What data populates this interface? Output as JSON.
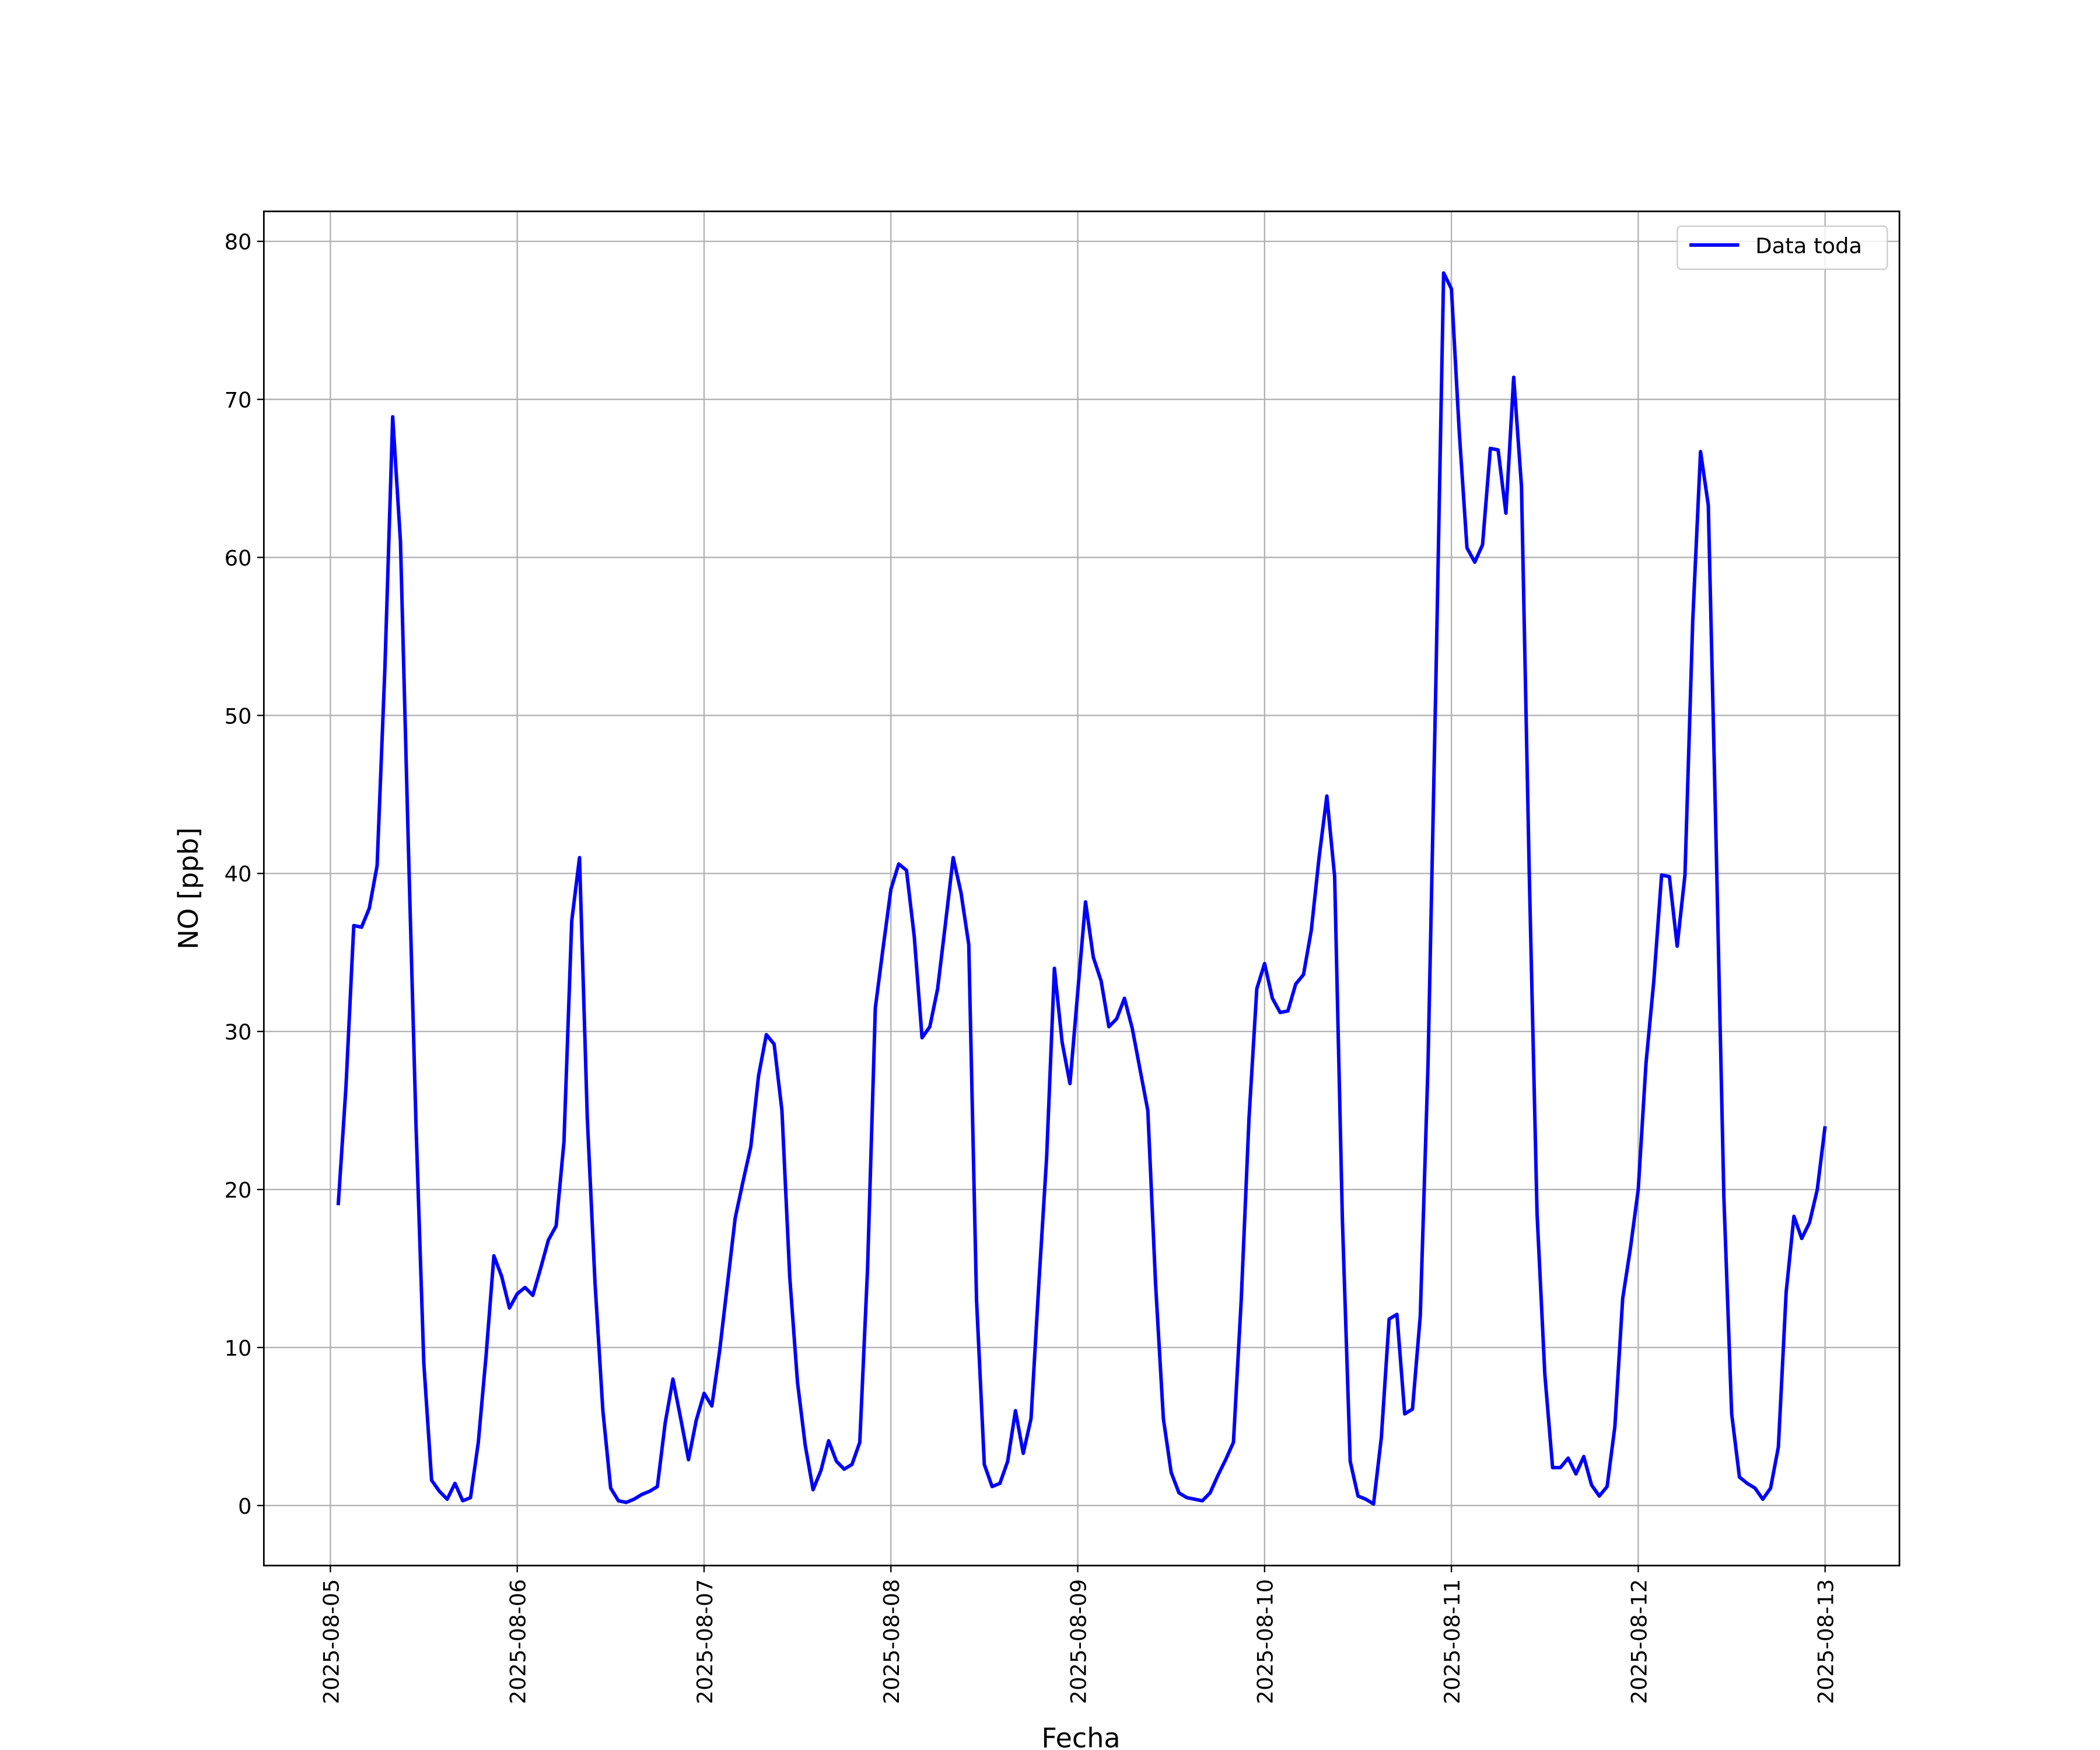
{
  "chart_data": {
    "type": "line",
    "xlabel": "Fecha",
    "ylabel": "NO [ppb]",
    "grid": true,
    "legend": "upper right",
    "xlim": [
      "2025-08-04 15:27",
      "2025-08-13 09:33"
    ],
    "xticks": [
      "2025-08-05",
      "2025-08-06",
      "2025-08-07",
      "2025-08-08",
      "2025-08-09",
      "2025-08-10",
      "2025-08-11",
      "2025-08-12",
      "2025-08-13"
    ],
    "ylim": [
      -3.8,
      81.9
    ],
    "yticks": [
      0,
      10,
      20,
      30,
      40,
      50,
      60,
      70,
      80
    ],
    "x": [
      "2025-08-05 01:00",
      "2025-08-05 02:00",
      "2025-08-05 03:00",
      "2025-08-05 04:00",
      "2025-08-05 05:00",
      "2025-08-05 06:00",
      "2025-08-05 07:00",
      "2025-08-05 08:00",
      "2025-08-05 09:00",
      "2025-08-05 10:00",
      "2025-08-05 11:00",
      "2025-08-05 12:00",
      "2025-08-05 13:00",
      "2025-08-05 14:00",
      "2025-08-05 15:00",
      "2025-08-05 16:00",
      "2025-08-05 17:00",
      "2025-08-05 18:00",
      "2025-08-05 19:00",
      "2025-08-05 20:00",
      "2025-08-05 21:00",
      "2025-08-05 22:00",
      "2025-08-05 23:00",
      "2025-08-06 00:00",
      "2025-08-06 01:00",
      "2025-08-06 02:00",
      "2025-08-06 03:00",
      "2025-08-06 04:00",
      "2025-08-06 05:00",
      "2025-08-06 06:00",
      "2025-08-06 07:00",
      "2025-08-06 08:00",
      "2025-08-06 09:00",
      "2025-08-06 10:00",
      "2025-08-06 11:00",
      "2025-08-06 12:00",
      "2025-08-06 13:00",
      "2025-08-06 14:00",
      "2025-08-06 15:00",
      "2025-08-06 16:00",
      "2025-08-06 17:00",
      "2025-08-06 18:00",
      "2025-08-06 19:00",
      "2025-08-06 20:00",
      "2025-08-06 21:00",
      "2025-08-06 22:00",
      "2025-08-06 23:00",
      "2025-08-07 00:00",
      "2025-08-07 01:00",
      "2025-08-07 02:00",
      "2025-08-07 03:00",
      "2025-08-07 04:00",
      "2025-08-07 05:00",
      "2025-08-07 06:00",
      "2025-08-07 07:00",
      "2025-08-07 08:00",
      "2025-08-07 09:00",
      "2025-08-07 10:00",
      "2025-08-07 11:00",
      "2025-08-07 12:00",
      "2025-08-07 13:00",
      "2025-08-07 14:00",
      "2025-08-07 15:00",
      "2025-08-07 16:00",
      "2025-08-07 17:00",
      "2025-08-07 18:00",
      "2025-08-07 19:00",
      "2025-08-07 20:00",
      "2025-08-07 21:00",
      "2025-08-07 22:00",
      "2025-08-07 23:00",
      "2025-08-08 00:00",
      "2025-08-08 01:00",
      "2025-08-08 02:00",
      "2025-08-08 03:00",
      "2025-08-08 04:00",
      "2025-08-08 05:00",
      "2025-08-08 06:00",
      "2025-08-08 07:00",
      "2025-08-08 08:00",
      "2025-08-08 09:00",
      "2025-08-08 10:00",
      "2025-08-08 11:00",
      "2025-08-08 12:00",
      "2025-08-08 13:00",
      "2025-08-08 14:00",
      "2025-08-08 15:00",
      "2025-08-08 16:00",
      "2025-08-08 17:00",
      "2025-08-08 18:00",
      "2025-08-08 19:00",
      "2025-08-08 20:00",
      "2025-08-08 21:00",
      "2025-08-08 22:00",
      "2025-08-08 23:00",
      "2025-08-09 00:00",
      "2025-08-09 01:00",
      "2025-08-09 02:00",
      "2025-08-09 03:00",
      "2025-08-09 04:00",
      "2025-08-09 05:00",
      "2025-08-09 06:00",
      "2025-08-09 07:00",
      "2025-08-09 08:00",
      "2025-08-09 09:00",
      "2025-08-09 10:00",
      "2025-08-09 11:00",
      "2025-08-09 12:00",
      "2025-08-09 13:00",
      "2025-08-09 14:00",
      "2025-08-09 15:00",
      "2025-08-09 16:00",
      "2025-08-09 17:00",
      "2025-08-09 18:00",
      "2025-08-09 19:00",
      "2025-08-09 20:00",
      "2025-08-09 21:00",
      "2025-08-09 22:00",
      "2025-08-09 23:00",
      "2025-08-10 00:00",
      "2025-08-10 01:00",
      "2025-08-10 02:00",
      "2025-08-10 03:00",
      "2025-08-10 04:00",
      "2025-08-10 05:00",
      "2025-08-10 06:00",
      "2025-08-10 07:00",
      "2025-08-10 08:00",
      "2025-08-10 09:00",
      "2025-08-10 10:00",
      "2025-08-10 11:00",
      "2025-08-10 12:00",
      "2025-08-10 13:00",
      "2025-08-10 14:00",
      "2025-08-10 15:00",
      "2025-08-10 16:00",
      "2025-08-10 17:00",
      "2025-08-10 18:00",
      "2025-08-10 19:00",
      "2025-08-10 20:00",
      "2025-08-10 21:00",
      "2025-08-10 22:00",
      "2025-08-10 23:00",
      "2025-08-11 00:00",
      "2025-08-11 01:00",
      "2025-08-11 02:00",
      "2025-08-11 03:00",
      "2025-08-11 04:00",
      "2025-08-11 05:00",
      "2025-08-11 06:00",
      "2025-08-11 07:00",
      "2025-08-11 08:00",
      "2025-08-11 09:00",
      "2025-08-11 10:00",
      "2025-08-11 11:00",
      "2025-08-11 12:00",
      "2025-08-11 13:00",
      "2025-08-11 14:00",
      "2025-08-11 15:00",
      "2025-08-11 16:00",
      "2025-08-11 17:00",
      "2025-08-11 18:00",
      "2025-08-11 19:00",
      "2025-08-11 20:00",
      "2025-08-11 21:00",
      "2025-08-11 22:00",
      "2025-08-11 23:00",
      "2025-08-12 00:00",
      "2025-08-12 01:00",
      "2025-08-12 02:00",
      "2025-08-12 03:00",
      "2025-08-12 04:00",
      "2025-08-12 05:00",
      "2025-08-12 06:00",
      "2025-08-12 07:00",
      "2025-08-12 08:00",
      "2025-08-12 09:00",
      "2025-08-12 10:00",
      "2025-08-12 11:00",
      "2025-08-12 12:00",
      "2025-08-12 13:00",
      "2025-08-12 14:00",
      "2025-08-12 15:00",
      "2025-08-12 16:00",
      "2025-08-12 17:00",
      "2025-08-12 18:00",
      "2025-08-12 19:00",
      "2025-08-12 20:00",
      "2025-08-12 21:00",
      "2025-08-12 22:00",
      "2025-08-12 23:00",
      "2025-08-13 00:00"
    ],
    "series": [
      {
        "name": "Data toda",
        "color": "#0000ff",
        "values": [
          19,
          26.5,
          36.7,
          36.6,
          37.8,
          40.5,
          53,
          68.9,
          61,
          42,
          24,
          9,
          1.6,
          0.9,
          0.4,
          1.4,
          0.3,
          0.5,
          4,
          9.5,
          15.8,
          14.5,
          12.5,
          13.4,
          13.8,
          13.3,
          15,
          16.8,
          17.7,
          23,
          37,
          41,
          24.5,
          14,
          6,
          1.1,
          0.3,
          0.2,
          0.4,
          0.7,
          0.9,
          1.2,
          5.2,
          8,
          5.5,
          2.9,
          5.4,
          7.1,
          6.3,
          9.8,
          14,
          18.2,
          20.5,
          22.7,
          27.2,
          29.8,
          29.2,
          25,
          14.5,
          7.8,
          3.8,
          1,
          2.2,
          4.1,
          2.8,
          2.3,
          2.6,
          4,
          15,
          31.5,
          35.3,
          39,
          40.6,
          40.2,
          36,
          29.6,
          30.3,
          32.7,
          36.8,
          41,
          38.8,
          35.5,
          13,
          2.6,
          1.2,
          1.4,
          2.8,
          6,
          3.3,
          5.5,
          14,
          22,
          34,
          29.3,
          26.7,
          32.5,
          38.2,
          34.7,
          33.2,
          30.3,
          30.8,
          32.1,
          30.2,
          27.6,
          25,
          14,
          5.5,
          2.1,
          0.8,
          0.5,
          0.4,
          0.3,
          0.8,
          1.9,
          2.9,
          4,
          13,
          24.5,
          32.7,
          34.3,
          32.1,
          31.2,
          31.3,
          33,
          33.6,
          36.4,
          41,
          44.9,
          39.8,
          18,
          2.8,
          0.6,
          0.4,
          0.1,
          4.3,
          11.8,
          12.1,
          5.8,
          6.1,
          12,
          28,
          52,
          78,
          77,
          68,
          60.6,
          59.7,
          60.8,
          66.9,
          66.8,
          62.8,
          71.4,
          64.5,
          40,
          18.5,
          8.3,
          2.4,
          2.4,
          3,
          2,
          3.1,
          1.3,
          0.6,
          1.2,
          5,
          13.1,
          16.3,
          20,
          28,
          33.2,
          39.9,
          39.8,
          35.4,
          39.9,
          56,
          66.7,
          63.3,
          42,
          19.5,
          5.8,
          1.8,
          1.4,
          1.1,
          0.4,
          1.1,
          3.7,
          13.5,
          18.3,
          16.9,
          17.9,
          20,
          24
        ]
      }
    ]
  }
}
